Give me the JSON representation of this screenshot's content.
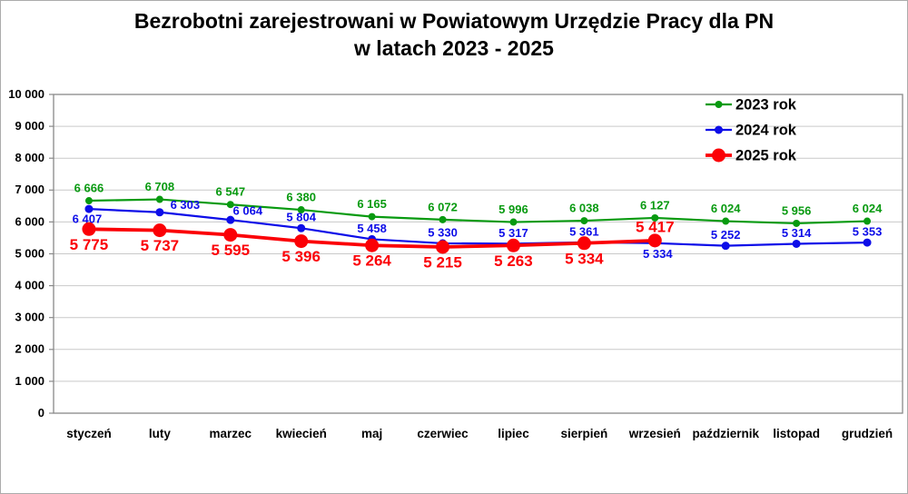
{
  "window": {
    "background": "#ffffff",
    "border_color": "#ababab"
  },
  "title": {
    "line1": "Bezrobotni zarejestrowani w Powiatowym Urzędzie Pracy dla PN",
    "line2": "w latach 2023 - 2025"
  },
  "chart_data": {
    "type": "line",
    "categories": [
      "styczeń",
      "luty",
      "marzec",
      "kwiecień",
      "maj",
      "czerwiec",
      "lipiec",
      "sierpień",
      "wrzesień",
      "październik",
      "listopad",
      "grudzień"
    ],
    "series": [
      {
        "name": "2023 rok",
        "color": "#089a10",
        "values": [
          6666,
          6708,
          6547,
          6380,
          6165,
          6072,
          5996,
          6038,
          6127,
          6024,
          5956,
          6024
        ]
      },
      {
        "name": "2024 rok",
        "color": "#0d0de8",
        "values": [
          6407,
          6303,
          6064,
          5804,
          5458,
          5330,
          5317,
          5361,
          5334,
          5252,
          5314,
          5353
        ]
      },
      {
        "name": "2025 rok",
        "color": "#fb0006",
        "values": [
          5775,
          5737,
          5595,
          5396,
          5264,
          5215,
          5263,
          5334,
          5417,
          null,
          null,
          null
        ]
      }
    ],
    "title": "Bezrobotni zarejestrowani w Powiatowym Urzędzie Pracy dla PN w latach 2023 - 2025",
    "xlabel": "",
    "ylabel": "",
    "ylim": [
      0,
      10000
    ],
    "ytick_step": 1000,
    "ytick_labels": [
      "0",
      "1 000",
      "2 000",
      "3 000",
      "4 000",
      "5 000",
      "6 000",
      "7 000",
      "8 000",
      "9 000",
      "10 000"
    ],
    "grid": true,
    "gridline_color": "#c9c9c9",
    "frame_color": "#898989",
    "legend_position": "top-right-inside",
    "data_labels": true,
    "number_format": "thousands-space"
  }
}
